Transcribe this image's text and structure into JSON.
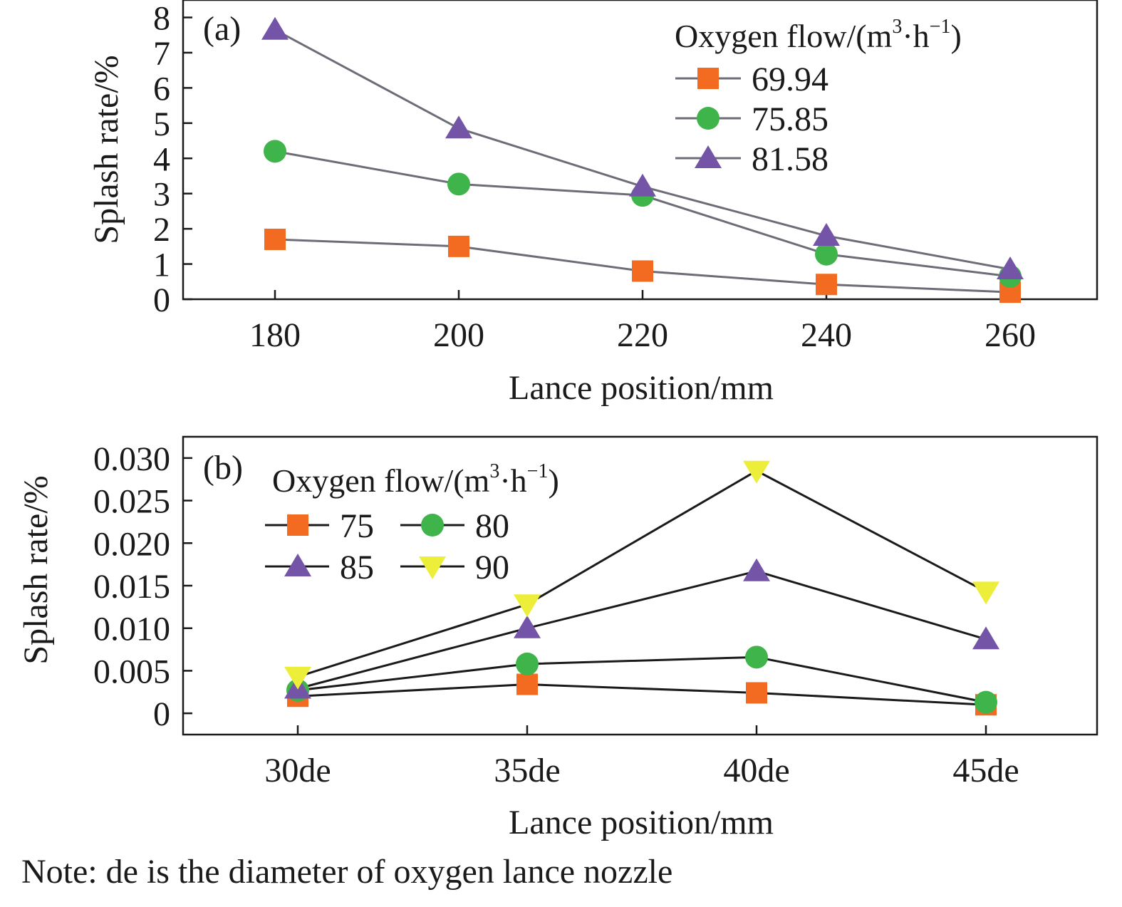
{
  "colors": {
    "orange": "#F26B21",
    "green": "#3FB44A",
    "purple": "#7454A6",
    "yellow": "#EDEE3A",
    "line_a": "#6d6d78",
    "line_b": "#1a1a1a",
    "axis": "#1a1a1a"
  },
  "note": "Note: de is the diameter of oxygen lance nozzle",
  "chart_data": [
    {
      "type": "line",
      "panel_label": "(a)",
      "xlabel": "Lance position/mm",
      "ylabel": "Splash rate/%",
      "categories": [
        "180",
        "200",
        "220",
        "240",
        "260"
      ],
      "ylim": [
        0,
        8
      ],
      "yticks": [
        "0",
        "1",
        "2",
        "3",
        "4",
        "5",
        "6",
        "7",
        "8"
      ],
      "legend": {
        "title_main": "Oxygen flow/(m",
        "title_sup1": "3",
        "title_mid": "·h",
        "title_sup2": "−1",
        "title_end": ")",
        "placement": "top-right"
      },
      "series": [
        {
          "name": "69.94",
          "marker": "square",
          "color": "#F26B21",
          "values": [
            1.7,
            1.5,
            0.8,
            0.42,
            0.2
          ]
        },
        {
          "name": "75.85",
          "marker": "circle",
          "color": "#3FB44A",
          "values": [
            4.2,
            3.27,
            2.95,
            1.28,
            0.65
          ]
        },
        {
          "name": "81.58",
          "marker": "triangle-up",
          "color": "#7454A6",
          "values": [
            7.65,
            4.85,
            3.2,
            1.8,
            0.85
          ]
        }
      ]
    },
    {
      "type": "line",
      "panel_label": "(b)",
      "xlabel": "Lance position/mm",
      "ylabel": "Splash rate/%",
      "categories": [
        "30de",
        "35de",
        "40de",
        "45de"
      ],
      "ylim": [
        -0.0025,
        0.0325
      ],
      "yticks": [
        "0",
        "0.005",
        "0.010",
        "0.015",
        "0.020",
        "0.025",
        "0.030"
      ],
      "ytick_values": [
        0,
        0.005,
        0.01,
        0.015,
        0.02,
        0.025,
        0.03
      ],
      "legend": {
        "title_main": "Oxygen flow/(m",
        "title_sup1": "3",
        "title_mid": "·h",
        "title_sup2": "−1",
        "title_end": ")",
        "placement": "top-left"
      },
      "series": [
        {
          "name": "75",
          "marker": "square",
          "color": "#F26B21",
          "values": [
            0.002,
            0.0034,
            0.0024,
            0.001
          ]
        },
        {
          "name": "80",
          "marker": "circle",
          "color": "#3FB44A",
          "values": [
            0.0027,
            0.0058,
            0.0066,
            0.0013
          ]
        },
        {
          "name": "85",
          "marker": "triangle-up",
          "color": "#7454A6",
          "values": [
            0.0029,
            0.01,
            0.0167,
            0.0087
          ]
        },
        {
          "name": "90",
          "marker": "triangle-down",
          "color": "#EDEE3A",
          "values": [
            0.0043,
            0.0128,
            0.0285,
            0.0143
          ]
        }
      ]
    }
  ]
}
